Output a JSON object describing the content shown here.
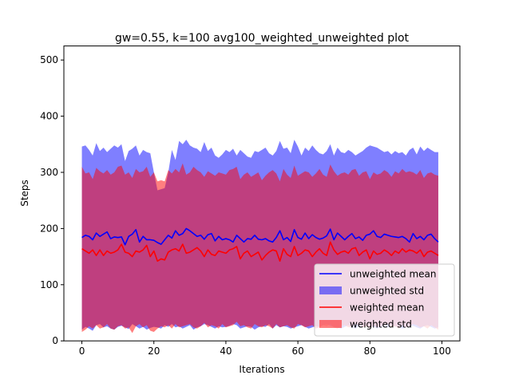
{
  "chart_data": {
    "type": "line",
    "title": "gw=0.55, k=100 avg100_weighted_unweighted plot",
    "xlabel": "Iterations",
    "ylabel": "Steps",
    "xlim": [
      -5,
      105
    ],
    "ylim": [
      0,
      525
    ],
    "xticks": [
      "0",
      "20",
      "40",
      "60",
      "80",
      "100"
    ],
    "yticks": [
      "0",
      "100",
      "200",
      "300",
      "400",
      "500"
    ],
    "grid": false,
    "legend_position": "lower right",
    "colors": {
      "unweighted_mean": "#0000ff",
      "unweighted_std": "#0000ff",
      "weighted_mean": "#ff0000",
      "weighted_std": "#ff0000"
    },
    "x": [
      0,
      1,
      2,
      3,
      4,
      5,
      6,
      7,
      8,
      9,
      10,
      11,
      12,
      13,
      14,
      15,
      16,
      17,
      18,
      19,
      20,
      21,
      22,
      23,
      24,
      25,
      26,
      27,
      28,
      29,
      30,
      31,
      32,
      33,
      34,
      35,
      36,
      37,
      38,
      39,
      40,
      41,
      42,
      43,
      44,
      45,
      46,
      47,
      48,
      49,
      50,
      51,
      52,
      53,
      54,
      55,
      56,
      57,
      58,
      59,
      60,
      61,
      62,
      63,
      64,
      65,
      66,
      67,
      68,
      69,
      70,
      71,
      72,
      73,
      74,
      75,
      76,
      77,
      78,
      79,
      80,
      81,
      82,
      83,
      84,
      85,
      86,
      87,
      88,
      89,
      90,
      91,
      92,
      93,
      94,
      95,
      96,
      97,
      98,
      99
    ],
    "series": [
      {
        "name": "unweighted mean",
        "kind": "line",
        "values": [
          184,
          188,
          186,
          180,
          192,
          186,
          190,
          194,
          182,
          185,
          184,
          185,
          171,
          186,
          190,
          198,
          176,
          186,
          180,
          180,
          179,
          175,
          172,
          180,
          188,
          183,
          196,
          188,
          191,
          200,
          196,
          191,
          186,
          188,
          181,
          189,
          191,
          178,
          186,
          180,
          182,
          180,
          176,
          188,
          182,
          176,
          182,
          181,
          188,
          181,
          180,
          182,
          178,
          176,
          184,
          196,
          180,
          184,
          177,
          198,
          184,
          181,
          192,
          182,
          189,
          184,
          181,
          183,
          187,
          199,
          180,
          192,
          186,
          180,
          186,
          191,
          182,
          185,
          179,
          188,
          190,
          196,
          186,
          184,
          190,
          188,
          186,
          185,
          184,
          186,
          182,
          176,
          191,
          182,
          186,
          180,
          188,
          190,
          182,
          176
        ]
      },
      {
        "name": "unweighted std",
        "kind": "band",
        "lower": [
          20,
          25,
          22,
          18,
          28,
          30,
          24,
          26,
          22,
          20,
          25,
          27,
          24,
          21,
          30,
          26,
          22,
          25,
          20,
          23,
          25,
          24,
          22,
          28,
          25,
          30,
          24,
          26,
          22,
          25,
          28,
          20,
          24,
          26,
          30,
          28,
          25,
          22,
          26,
          24,
          25,
          27,
          30,
          28,
          22,
          24,
          26,
          25,
          20,
          24,
          26,
          25,
          30,
          22,
          28,
          24,
          26,
          25,
          22,
          24,
          26,
          28,
          25,
          22,
          24,
          26,
          25,
          28,
          30,
          27,
          25,
          24,
          22,
          25,
          28,
          24,
          22,
          26,
          25,
          28,
          24,
          26,
          22,
          25,
          27,
          24,
          28,
          26,
          25,
          22,
          24,
          26,
          27,
          24,
          22,
          26,
          28,
          25,
          22,
          24
        ],
        "upper": [
          346,
          348,
          340,
          330,
          352,
          338,
          344,
          336,
          342,
          348,
          344,
          350,
          320,
          338,
          342,
          348,
          330,
          340,
          336,
          334,
          300,
          268,
          270,
          272,
          300,
          340,
          322,
          356,
          350,
          358,
          348,
          344,
          342,
          336,
          354,
          338,
          344,
          330,
          326,
          332,
          340,
          336,
          342,
          330,
          340,
          334,
          328,
          326,
          338,
          336,
          340,
          344,
          334,
          330,
          338,
          356,
          342,
          344,
          334,
          358,
          346,
          330,
          344,
          338,
          348,
          340,
          334,
          332,
          338,
          350,
          330,
          344,
          336,
          334,
          340,
          336,
          330,
          334,
          338,
          344,
          348,
          346,
          344,
          340,
          336,
          338,
          332,
          338,
          334,
          336,
          330,
          340,
          344,
          332,
          346,
          338,
          344,
          340,
          336,
          336
        ]
      },
      {
        "name": "weighted mean",
        "kind": "line",
        "values": [
          164,
          160,
          156,
          162,
          152,
          162,
          152,
          160,
          156,
          158,
          162,
          172,
          158,
          156,
          150,
          160,
          158,
          162,
          170,
          150,
          160,
          142,
          146,
          144,
          158,
          162,
          164,
          160,
          172,
          156,
          158,
          162,
          166,
          160,
          150,
          162,
          154,
          152,
          160,
          158,
          156,
          162,
          164,
          168,
          146,
          156,
          160,
          150,
          154,
          158,
          144,
          152,
          158,
          162,
          160,
          142,
          164,
          154,
          150,
          168,
          152,
          156,
          162,
          160,
          150,
          158,
          164,
          156,
          152,
          176,
          162,
          154,
          158,
          160,
          156,
          164,
          166,
          152,
          158,
          162,
          146,
          160,
          154,
          156,
          162,
          158,
          152,
          160,
          156,
          164,
          158,
          162,
          160,
          156,
          162,
          150,
          158,
          160,
          156,
          152
        ]
      },
      {
        "name": "weighted std",
        "kind": "band",
        "lower": [
          16,
          20,
          26,
          22,
          28,
          22,
          24,
          30,
          22,
          20,
          26,
          28,
          22,
          24,
          14,
          26,
          30,
          24,
          28,
          18,
          16,
          22,
          26,
          24,
          28,
          22,
          30,
          24,
          26,
          28,
          30,
          24,
          22,
          26,
          32,
          24,
          28,
          26,
          22,
          30,
          24,
          26,
          28,
          34,
          26,
          28,
          24,
          22,
          30,
          26,
          24,
          28,
          26,
          22,
          30,
          24,
          26,
          28,
          24,
          22,
          30,
          28,
          24,
          26,
          28,
          22,
          24,
          28,
          26,
          30,
          24,
          22,
          26,
          28,
          24,
          26,
          30,
          28,
          24,
          26,
          22,
          28,
          24,
          26,
          28,
          30,
          24,
          26,
          22,
          28,
          24,
          26,
          30,
          28,
          24,
          26,
          22,
          28,
          24,
          20
        ],
        "upper": [
          310,
          298,
          300,
          288,
          308,
          302,
          298,
          304,
          296,
          300,
          310,
          312,
          296,
          300,
          290,
          306,
          300,
          302,
          310,
          292,
          300,
          284,
          286,
          284,
          304,
          298,
          306,
          300,
          316,
          296,
          300,
          310,
          304,
          300,
          292,
          302,
          298,
          294,
          300,
          298,
          296,
          304,
          306,
          310,
          288,
          296,
          300,
          292,
          296,
          300,
          286,
          294,
          300,
          304,
          298,
          284,
          306,
          296,
          290,
          312,
          294,
          298,
          302,
          300,
          292,
          298,
          306,
          296,
          292,
          314,
          302,
          294,
          298,
          300,
          296,
          304,
          306,
          294,
          300,
          302,
          288,
          300,
          296,
          298,
          304,
          300,
          292,
          302,
          298,
          306,
          300,
          302,
          300,
          296,
          304,
          290,
          298,
          300,
          296,
          294
        ]
      }
    ],
    "legend": [
      {
        "label": "unweighted mean",
        "kind": "line",
        "color": "#0000ff"
      },
      {
        "label": "unweighted std",
        "kind": "band",
        "color": "#0000ff"
      },
      {
        "label": "weighted mean",
        "kind": "line",
        "color": "#ff0000"
      },
      {
        "label": "weighted std",
        "kind": "band",
        "color": "#ff0000"
      }
    ]
  }
}
